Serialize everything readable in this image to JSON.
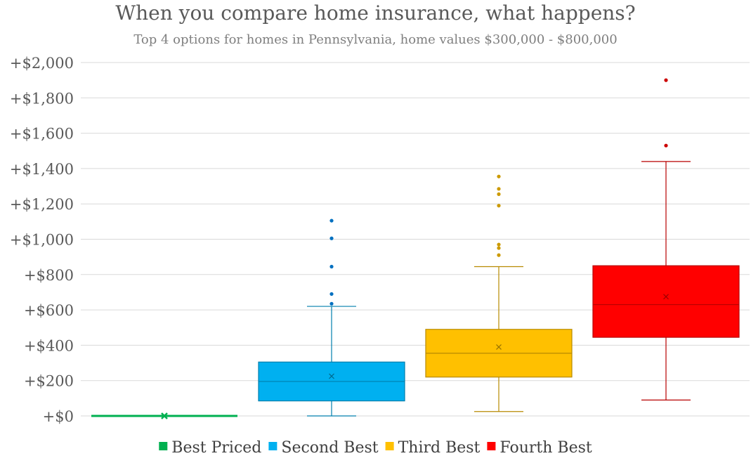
{
  "title": "When you compare home insurance, what happens?",
  "subtitle": "Top 4 options for homes in Pennsylvania, home values $300,000 - $800,000",
  "chart_data": {
    "type": "box",
    "title": "When you compare home insurance, what happens?",
    "subtitle": "Top 4 options for homes in Pennsylvania, home values $300,000 - $800,000",
    "xlabel": "",
    "ylabel": "",
    "ylim": [
      0,
      2000
    ],
    "y_ticks": [
      0,
      200,
      400,
      600,
      800,
      1000,
      1200,
      1400,
      1600,
      1800,
      2000
    ],
    "y_tick_labels": [
      "+$0",
      "+$200",
      "+$400",
      "+$600",
      "+$800",
      "+$1,000",
      "+$1,200",
      "+$1,400",
      "+$1,600",
      "+$1,800",
      "+$2,000"
    ],
    "grid": true,
    "legend_position": "bottom",
    "series": [
      {
        "name": "Best Priced",
        "color": "#00b050",
        "min": 0,
        "q1": 0,
        "median": 0,
        "q3": 0,
        "max": 0,
        "mean": 0,
        "outliers": []
      },
      {
        "name": "Second Best",
        "color": "#00b0f0",
        "min": 0,
        "q1": 85,
        "median": 195,
        "q3": 305,
        "max": 620,
        "mean": 225,
        "outliers": [
          635,
          690,
          845,
          1005,
          1105
        ]
      },
      {
        "name": "Third Best",
        "color": "#ffc000",
        "min": 25,
        "q1": 220,
        "median": 355,
        "q3": 490,
        "max": 845,
        "mean": 390,
        "outliers": [
          910,
          950,
          970,
          1190,
          1255,
          1285,
          1355
        ]
      },
      {
        "name": "Fourth Best",
        "color": "#ff0000",
        "min": 90,
        "q1": 445,
        "median": 630,
        "q3": 850,
        "max": 1440,
        "mean": 675,
        "outliers": [
          1530,
          1900
        ]
      }
    ]
  }
}
